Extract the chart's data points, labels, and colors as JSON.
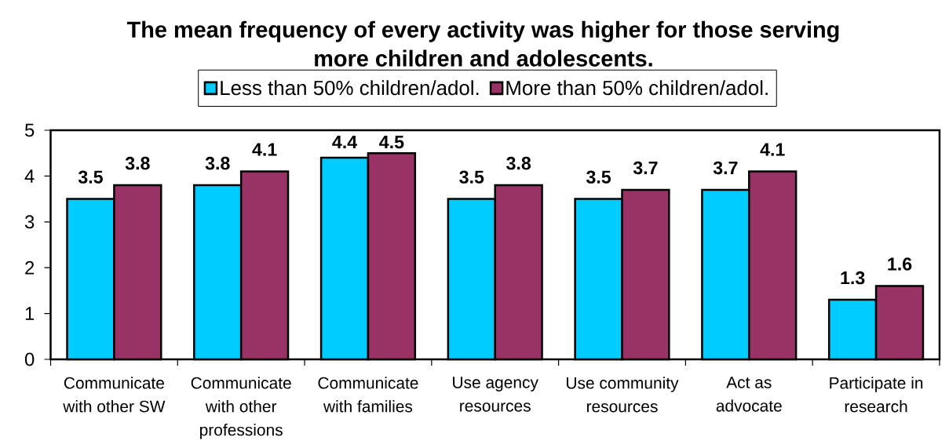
{
  "chart_data": {
    "type": "bar",
    "title": "The mean frequency of every activity was higher for those serving more children and adolescents.",
    "categories": [
      "Communicate with other SW",
      "Communicate with other professions",
      "Communicate with families",
      "Use agency resources",
      "Use community resources",
      "Act as advocate",
      "Participate in research"
    ],
    "series": [
      {
        "name": "Less than 50% children/adol.",
        "color": "#00ccff",
        "values": [
          3.5,
          3.8,
          4.4,
          3.5,
          3.5,
          3.7,
          1.3
        ]
      },
      {
        "name": "More than 50% children/adol.",
        "color": "#993366",
        "values": [
          3.8,
          4.1,
          4.5,
          3.8,
          3.7,
          4.1,
          1.6
        ]
      }
    ],
    "ylim": [
      0,
      5
    ],
    "yticks": [
      0,
      1,
      2,
      3,
      4,
      5
    ],
    "data_labels": true,
    "legend": "top"
  }
}
